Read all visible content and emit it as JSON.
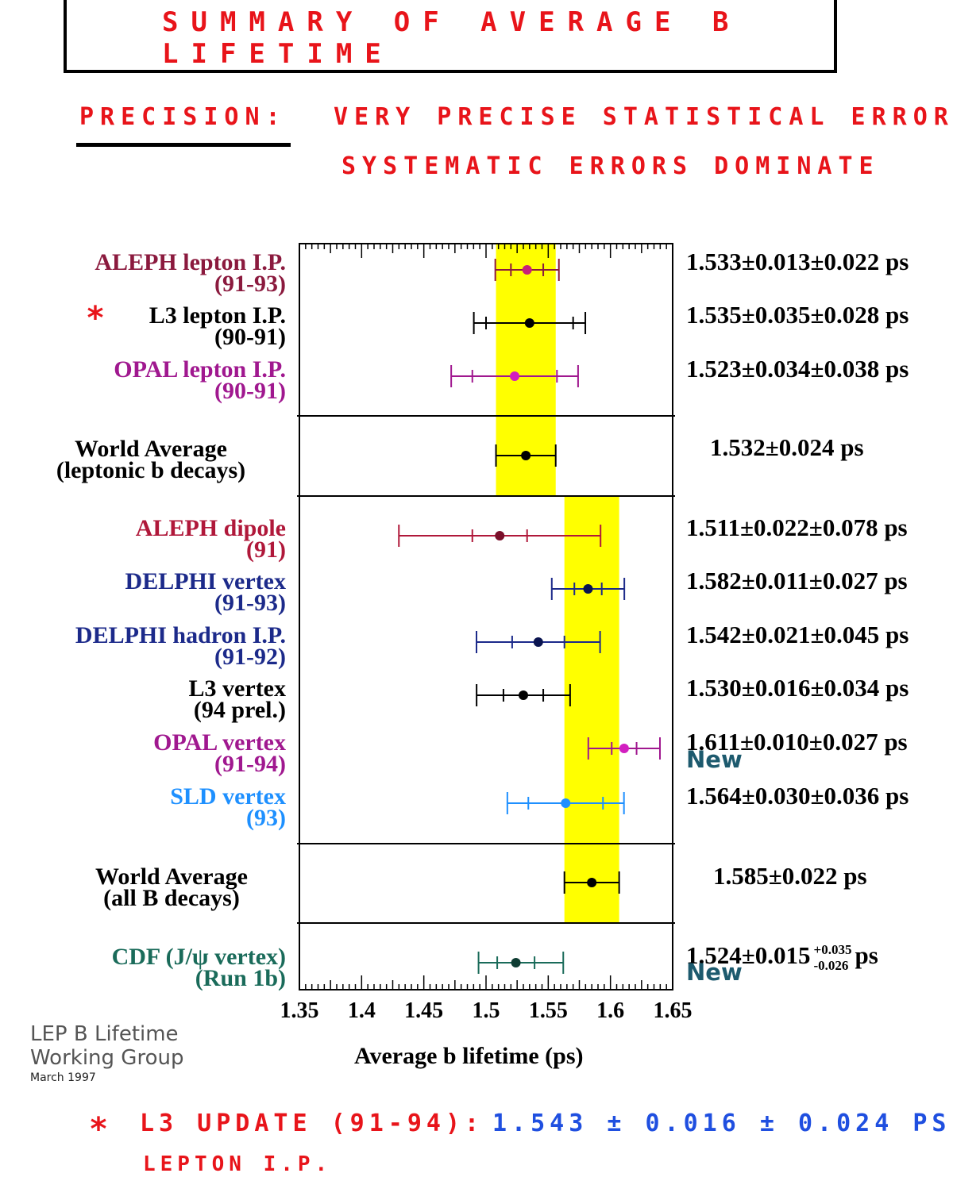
{
  "header": {
    "title": "SUMMARY OF AVERAGE B LIFETIME",
    "precision_label": "PRECISION:",
    "note_line1": "VERY PRECISE STATISTICAL ERRORS",
    "note_line2": "SYSTEMATIC ERRORS DOMINATE"
  },
  "chart_data": {
    "type": "scatter",
    "xlabel": "Average b lifetime (ps)",
    "xlim": [
      1.35,
      1.65
    ],
    "xticks": [
      "1.35",
      "1.4",
      "1.45",
      "1.5",
      "1.55",
      "1.6",
      "1.65"
    ],
    "bands": [
      {
        "group": "leptonic",
        "center": 1.532,
        "error": 0.024,
        "color": "#ffff00"
      },
      {
        "group": "all",
        "center": 1.585,
        "error": 0.022,
        "color": "#ffff00"
      }
    ],
    "measurements": [
      {
        "line1": "ALEPH lepton I.P.",
        "line2": "(91-93)",
        "value": 1.533,
        "stat": 0.013,
        "syst": 0.022,
        "value_text": "1.533±0.013±0.022 ps",
        "color": "#8b1a3e",
        "marker": "#c8207a"
      },
      {
        "line1": "L3 lepton I.P.",
        "line2": "(90-91)",
        "value": 1.535,
        "stat": 0.035,
        "syst": 0.028,
        "value_text": "1.535±0.035±0.028 ps",
        "color": "#000000",
        "marker": "#000000",
        "starred": true,
        "star": "*"
      },
      {
        "line1": "OPAL lepton I.P.",
        "line2": "(90-91)",
        "value": 1.523,
        "stat": 0.034,
        "syst": 0.038,
        "value_text": "1.523±0.034±0.038 ps",
        "color": "#a0188f",
        "marker": "#d21fc0"
      },
      {
        "line1": "World Average",
        "line2": "(leptonic b decays)",
        "value": 1.532,
        "error": 0.024,
        "value_text": "1.532±0.024 ps",
        "color": "#000000",
        "marker": "#000000",
        "average": true
      },
      {
        "line1": "ALEPH dipole",
        "line2": "(91)",
        "value": 1.511,
        "stat": 0.022,
        "syst": 0.078,
        "value_text": "1.511±0.022±0.078 ps",
        "color": "#b0183a",
        "marker": "#7a0f2a"
      },
      {
        "line1": "DELPHI vertex",
        "line2": "(91-93)",
        "value": 1.582,
        "stat": 0.011,
        "syst": 0.027,
        "value_text": "1.582±0.011±0.027 ps",
        "color": "#1c2a8a",
        "marker": "#0a1450"
      },
      {
        "line1": "DELPHI hadron I.P.",
        "line2": "(91-92)",
        "value": 1.542,
        "stat": 0.021,
        "syst": 0.045,
        "value_text": "1.542±0.021±0.045 ps",
        "color": "#1c2a8a",
        "marker": "#0a1450"
      },
      {
        "line1": "L3 vertex",
        "line2": "(94 prel.)",
        "value": 1.53,
        "stat": 0.016,
        "syst": 0.034,
        "value_text": "1.530±0.016±0.034 ps",
        "color": "#000000",
        "marker": "#000000"
      },
      {
        "line1": "OPAL vertex",
        "line2": "(91-94)",
        "value": 1.611,
        "stat": 0.01,
        "syst": 0.027,
        "value_text": "1.611±0.010±0.027 ps",
        "color": "#a0188f",
        "marker": "#d21fc0",
        "new": true
      },
      {
        "line1": "SLD vertex",
        "line2": "(93)",
        "value": 1.564,
        "stat": 0.03,
        "syst": 0.036,
        "value_text": "1.564±0.030±0.036 ps",
        "color": "#1e90ff",
        "marker": "#1e90ff"
      },
      {
        "line1": "World Average",
        "line2": "(all B decays)",
        "value": 1.585,
        "error": 0.022,
        "value_text": "1.585±0.022 ps",
        "color": "#000000",
        "marker": "#000000",
        "average": true
      },
      {
        "line1": "CDF (J/ψ vertex)",
        "line2": "(Run 1b)",
        "value": 1.524,
        "stat": 0.015,
        "syst_plus": 0.035,
        "syst_minus": 0.026,
        "value_main": "1.524±0.015",
        "value_sup": "+0.035",
        "value_sub": "-0.026",
        "value_unit": "ps",
        "color": "#1a6b5a",
        "marker": "#0f3d33",
        "new": true
      }
    ]
  },
  "new_badge": "New",
  "watermark": {
    "line1": "LEP B Lifetime",
    "line2": "Working Group",
    "date": "March 1997"
  },
  "footer": {
    "star": "*",
    "update_text": "L3 UPDATE (91-94):",
    "update_value": "1.543 ± 0.016 ± 0.024 PS",
    "update_text2": "LEPTON I.P."
  },
  "colors": {
    "handwriting_red": "#e8141a",
    "handwriting_blue": "#1f4fe0",
    "band": "#ffff00"
  }
}
